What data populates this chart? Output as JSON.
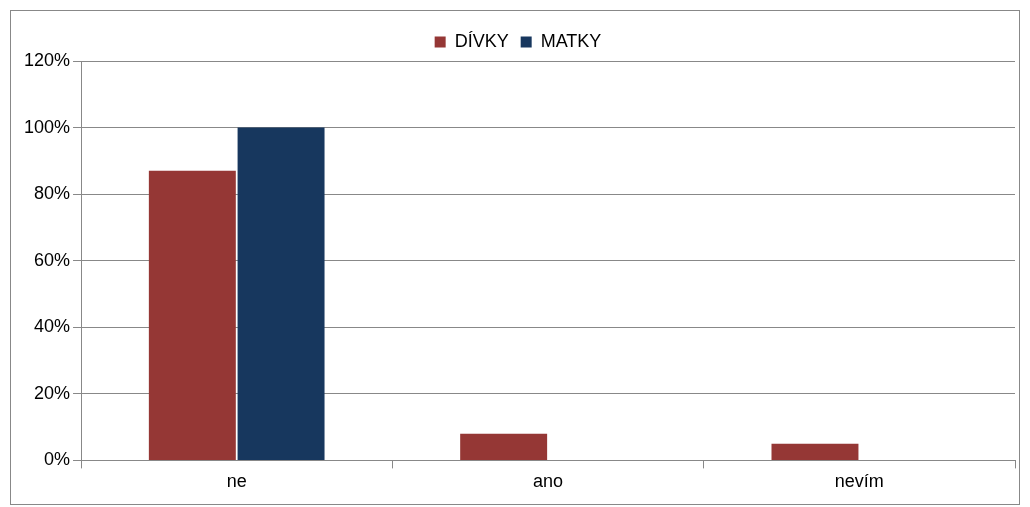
{
  "chart_data": {
    "type": "bar",
    "categories": [
      "ne",
      "ano",
      "nevím"
    ],
    "series": [
      {
        "name": "DÍVKY",
        "color": "#953735",
        "values": [
          87,
          8,
          5
        ]
      },
      {
        "name": "MATKY",
        "color": "#17375e",
        "values": [
          100,
          0,
          0
        ]
      }
    ],
    "ylim": [
      0,
      120
    ],
    "yticks": [
      {
        "value": 0,
        "label": "0%"
      },
      {
        "value": 20,
        "label": "20%"
      },
      {
        "value": 40,
        "label": "40%"
      },
      {
        "value": 60,
        "label": "60%"
      },
      {
        "value": 80,
        "label": "80%"
      },
      {
        "value": 100,
        "label": "100%"
      },
      {
        "value": 120,
        "label": "120%"
      }
    ],
    "grid": "y",
    "legend": "top"
  }
}
